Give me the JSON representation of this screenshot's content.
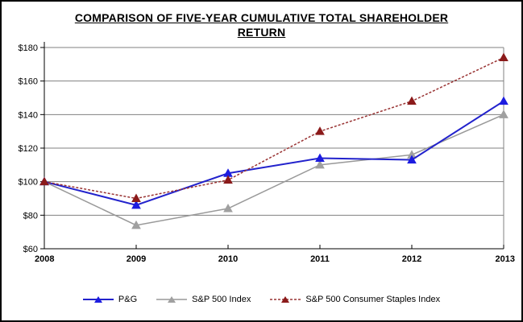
{
  "window": {
    "background_color": "#ffffff",
    "border_color": "#000000"
  },
  "title": {
    "line1": "COMPARISON OF FIVE-YEAR CUMULATIVE TOTAL SHAREHOLDER",
    "line2": "RETURN"
  },
  "chart_data": {
    "type": "line",
    "title": "COMPARISON OF FIVE-YEAR CUMULATIVE TOTAL SHAREHOLDER RETURN",
    "categories": [
      "2008",
      "2009",
      "2010",
      "2011",
      "2012",
      "2013"
    ],
    "series": [
      {
        "name": "P&G",
        "values": [
          100,
          86,
          105,
          114,
          113,
          148
        ],
        "color": "#2222CC",
        "marker_color": "#1C1CE0",
        "line_style": "solid",
        "marker": "triangle"
      },
      {
        "name": "S&P 500 Index",
        "values": [
          100,
          74,
          84,
          110,
          116,
          140
        ],
        "color": "#999999",
        "marker_color": "#A0A0A0",
        "line_style": "solid",
        "marker": "triangle"
      },
      {
        "name": "S&P 500 Consumer Staples Index",
        "values": [
          100,
          90,
          101,
          130,
          148,
          174
        ],
        "color": "#993333",
        "marker_color": "#8B1A1A",
        "line_style": "dashed",
        "marker": "triangle"
      }
    ],
    "ylim": [
      60,
      180
    ],
    "ytick_step": 20,
    "ytick_labels": [
      "$60",
      "$80",
      "$100",
      "$120",
      "$140",
      "$160",
      "$180"
    ],
    "xlabel": "",
    "ylabel": "",
    "grid": "horizontal",
    "gridline_color": "#808080",
    "axis_color": "#000000",
    "legend_position": "bottom"
  }
}
